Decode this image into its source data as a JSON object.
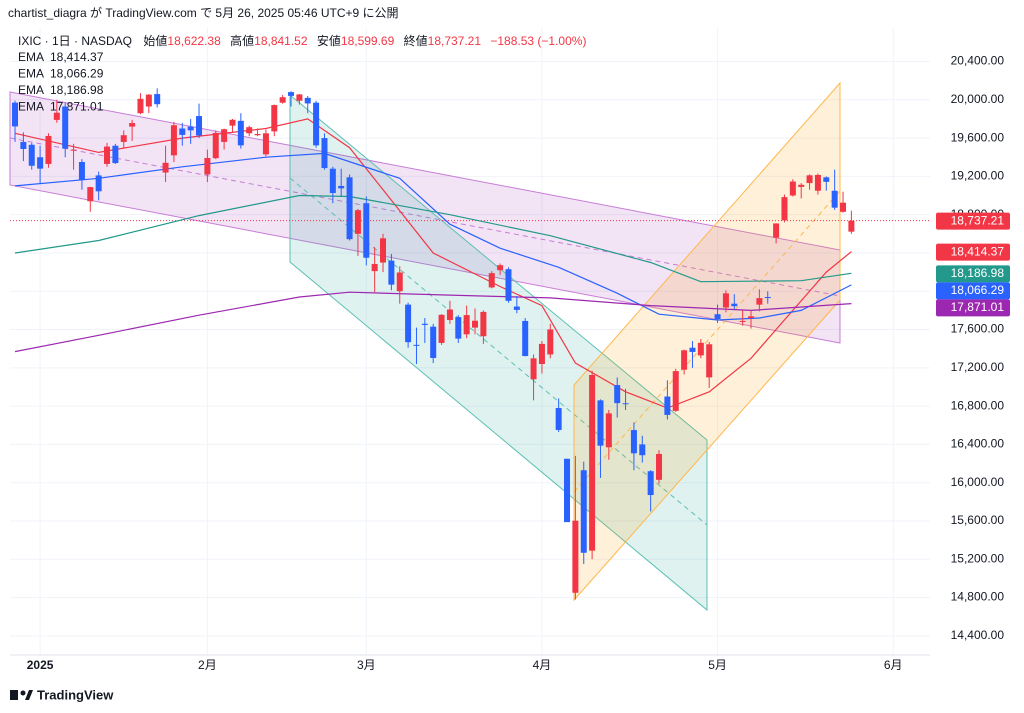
{
  "header": {
    "publisher": "chartist_diagra が TradingView.com で 5月 26, 2025 05:46 UTC+9 に公開",
    "symbol": "IXIC · 1日 · NASDAQ",
    "fields": [
      {
        "label": "始値",
        "value": "18,622.38"
      },
      {
        "label": "高値",
        "value": "18,841.52"
      },
      {
        "label": "安値",
        "value": "18,599.69"
      },
      {
        "label": "終値",
        "value": "18,737.21"
      }
    ],
    "change": "−188.53 (−1.00%)"
  },
  "footer": {
    "brand": "TradingView"
  },
  "chart_data": {
    "type": "candlestick",
    "up_color": "#f23645",
    "down_color": "#2962ff",
    "open": [
      19970,
      19560,
      19530,
      19400,
      19330,
      19790,
      19930,
      19470,
      19350,
      18940,
      19210,
      19330,
      19520,
      19560,
      19720,
      19860,
      19930,
      20060,
      19240,
      19420,
      19700,
      19720,
      19830,
      19220,
      19390,
      19560,
      19730,
      19780,
      19650,
      19630,
      19430,
      19670,
      19970,
      20080,
      19990,
      20020,
      19970,
      19600,
      19280,
      19100,
      19190,
      18600,
      18920,
      18210,
      18300,
      18320,
      18000,
      17860,
      17440,
      17660,
      17630,
      17460,
      17700,
      17730,
      17550,
      17620,
      17530,
      18040,
      18220,
      18230,
      17840,
      17690,
      17080,
      17240,
      17340,
      16780,
      16250,
      14850,
      16130,
      15290,
      16860,
      16370,
      17020,
      16830,
      16550,
      16400,
      16120,
      16030,
      16900,
      16750,
      17180,
      17410,
      17330,
      17100,
      17760,
      17830,
      17870,
      17680,
      17720,
      17860,
      17940,
      18560,
      18740,
      19000,
      19090,
      19130,
      19050,
      19190,
      19050,
      18830,
      18622.38
    ],
    "high": [
      19990,
      19660,
      19550,
      19520,
      19650,
      20000,
      19970,
      19540,
      19380,
      19090,
      19250,
      19550,
      19540,
      19680,
      19790,
      20070,
      20060,
      20120,
      19520,
      19770,
      19760,
      19800,
      19960,
      19480,
      19680,
      19700,
      19800,
      19860,
      19730,
      19700,
      19690,
      19950,
      20050,
      20090,
      20060,
      20040,
      19990,
      19650,
      19300,
      19280,
      19220,
      18860,
      18990,
      18460,
      18600,
      18390,
      18260,
      17880,
      17620,
      17720,
      17660,
      17760,
      17900,
      17750,
      17850,
      17820,
      17800,
      18210,
      18290,
      18250,
      17950,
      17720,
      17340,
      17480,
      17660,
      16880,
      16250,
      16280,
      16220,
      17170,
      16870,
      16760,
      17100,
      16980,
      16630,
      16490,
      16130,
      16340,
      17070,
      17190,
      17390,
      17480,
      17500,
      17470,
      17860,
      18010,
      17970,
      17800,
      17800,
      18020,
      18000,
      18710,
      19010,
      19170,
      19130,
      19220,
      19230,
      19200,
      19270,
      19040,
      18841.52
    ],
    "low": [
      19560,
      19360,
      19270,
      19130,
      19290,
      19760,
      19400,
      19270,
      19060,
      18830,
      18950,
      19300,
      19330,
      19500,
      19570,
      19850,
      19860,
      19920,
      19140,
      19350,
      19520,
      19540,
      19600,
      19140,
      19380,
      19480,
      19660,
      19490,
      19620,
      19620,
      19410,
      19620,
      19960,
      19930,
      19950,
      19860,
      19500,
      19270,
      18920,
      18990,
      18530,
      18370,
      18270,
      17990,
      18200,
      18010,
      17870,
      17410,
      17240,
      17460,
      17250,
      17440,
      17660,
      17460,
      17510,
      17550,
      17450,
      18030,
      18170,
      17880,
      17770,
      17320,
      16860,
      17140,
      17300,
      16530,
      15590,
      14780,
      15150,
      15200,
      16050,
      16240,
      16680,
      16760,
      16130,
      16210,
      15700,
      15990,
      16660,
      16740,
      17130,
      17200,
      17300,
      16990,
      17670,
      17780,
      17810,
      17640,
      17610,
      17790,
      17870,
      18500,
      18720,
      18990,
      18970,
      19060,
      19010,
      19050,
      18850,
      18820,
      18599.69
    ],
    "close": [
      19722,
      19486,
      19311,
      19281,
      19622,
      19865,
      19490,
      19479,
      19162,
      19088,
      19044,
      19511,
      19339,
      19630,
      19757,
      20010,
      20054,
      19954,
      19342,
      19734,
      19633,
      19681,
      19627,
      19392,
      19654,
      19692,
      19791,
      19524,
      19714,
      19643,
      19650,
      19945,
      20027,
      20041,
      20056,
      19962,
      19524,
      19287,
      19026,
      19075,
      18544,
      18847,
      18350,
      18285,
      18553,
      18069,
      18196,
      17468,
      17436,
      17648,
      17303,
      17754,
      17809,
      17505,
      17751,
      17692,
      17784,
      18189,
      18272,
      17900,
      17805,
      17323,
      17299,
      17450,
      17601,
      16551,
      15588,
      15603,
      15268,
      17125,
      16387,
      16724,
      16831,
      16823,
      16307,
      16287,
      15871,
      16300,
      16708,
      17166,
      17383,
      17366,
      17461,
      17446,
      17710,
      17978,
      17844,
      17690,
      17738,
      17928,
      17929,
      18708,
      18983,
      19146,
      19112,
      19211,
      19215,
      19143,
      18873,
      18925,
      18737.21
    ],
    "last_price_label": "18,737.21",
    "overlays": [
      {
        "name": "EMA",
        "color": "#f23645",
        "value_label": "18,414.37",
        "x": [
          0,
          10,
          20,
          30,
          35,
          40,
          45,
          50,
          58,
          63,
          67,
          73,
          78,
          83,
          88,
          93,
          97,
          100
        ],
        "values": [
          19650,
          19450,
          19600,
          19700,
          19800,
          19500,
          18950,
          18400,
          18050,
          17850,
          17250,
          16950,
          16780,
          16950,
          17300,
          17800,
          18200,
          18414.37
        ]
      },
      {
        "name": "EMA",
        "color": "#2962ff",
        "value_label": "18,066.29",
        "x": [
          0,
          10,
          20,
          30,
          37,
          46,
          52,
          58,
          65,
          72,
          77,
          84,
          89,
          94,
          100
        ],
        "values": [
          19100,
          19180,
          19300,
          19400,
          19440,
          19180,
          18700,
          18450,
          18250,
          17980,
          17760,
          17700,
          17720,
          17800,
          18066.29
        ]
      },
      {
        "name": "EMA",
        "color": "#22998a",
        "value_label": "18,186.98",
        "x": [
          0,
          10,
          22,
          34,
          40,
          52,
          64,
          76,
          82,
          94,
          100
        ],
        "values": [
          18400,
          18530,
          18790,
          19000,
          18990,
          18800,
          18580,
          18300,
          18100,
          18110,
          18186.98
        ]
      },
      {
        "name": "EMA",
        "color": "#9c27b0",
        "value_label": "17,871.01",
        "x": [
          0,
          10,
          22,
          34,
          40,
          52,
          64,
          76,
          88,
          100
        ],
        "values": [
          17370,
          17540,
          17750,
          17940,
          17990,
          17960,
          17930,
          17850,
          17800,
          17871.01
        ]
      }
    ],
    "ylim": [
      14200,
      20750
    ],
    "yticks": [
      {
        "value": 14400,
        "label": "14,400.00"
      },
      {
        "value": 14800,
        "label": "14,800.00"
      },
      {
        "value": 15200,
        "label": "15,200.00"
      },
      {
        "value": 15600,
        "label": "15,600.00"
      },
      {
        "value": 16000,
        "label": "16,000.00"
      },
      {
        "value": 16400,
        "label": "16,400.00"
      },
      {
        "value": 16800,
        "label": "16,800.00"
      },
      {
        "value": 17200,
        "label": "17,200.00"
      },
      {
        "value": 17600,
        "label": "17,600.00"
      },
      {
        "value": 18000,
        "label": "18,000.00"
      },
      {
        "value": 18400,
        "label": "18,400.00"
      },
      {
        "value": 18800,
        "label": "18,800.00"
      },
      {
        "value": 19200,
        "label": "19,200.00"
      },
      {
        "value": 19600,
        "label": "19,600.00"
      },
      {
        "value": 20000,
        "label": "20,000.00"
      },
      {
        "value": 20400,
        "label": "20,400.00"
      }
    ],
    "xlim": [
      -0.6,
      109.4
    ],
    "xticks": [
      {
        "value": 3,
        "label": "2025"
      },
      {
        "value": 23,
        "label": "2月"
      },
      {
        "value": 42,
        "label": "3月"
      },
      {
        "value": 63,
        "label": "4月"
      },
      {
        "value": 84,
        "label": "5月"
      },
      {
        "value": 105,
        "label": "6月"
      }
    ],
    "grid": true
  }
}
